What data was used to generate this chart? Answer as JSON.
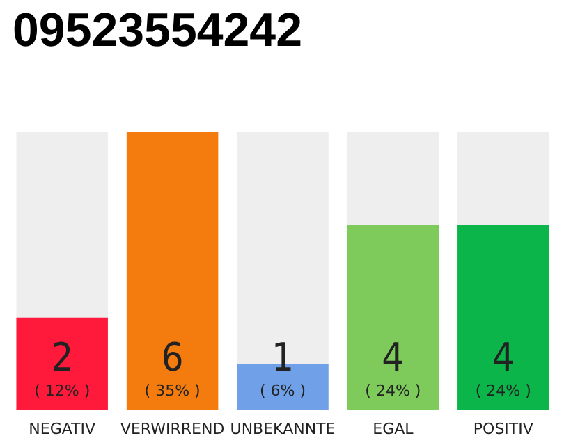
{
  "chart_data": {
    "type": "bar",
    "title": "09523554242",
    "categories": [
      "NEGATIV",
      "VERWIRREND",
      "UNBEKANNTE",
      "EGAL",
      "POSITIV"
    ],
    "values": [
      2,
      6,
      1,
      4,
      4
    ],
    "colors": [
      "#ff1a3c",
      "#f47c0e",
      "#6fa0e8",
      "#7ecb5c",
      "#0cb54a"
    ],
    "value_labels": [
      "2\n( 12% )",
      "6\n( 35% )",
      "1\n( 6% )",
      "4\n( 24% )",
      "4\n( 24% )"
    ]
  }
}
